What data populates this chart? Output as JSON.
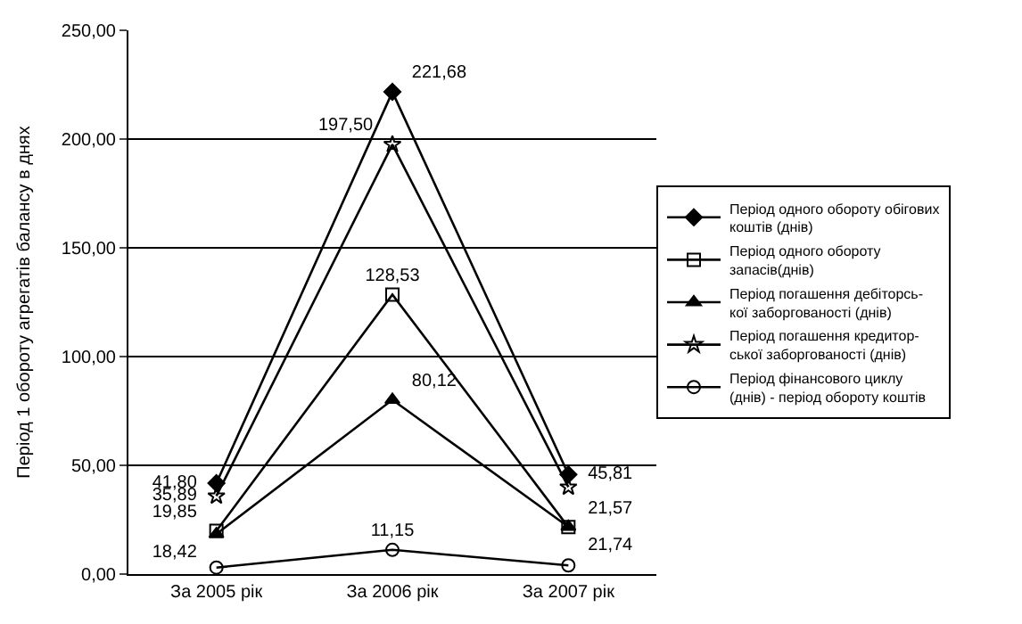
{
  "chart_data": {
    "type": "line",
    "ylabel": "Період 1 обороту агрегатів балансу в днях",
    "categories": [
      "За 2005 рік",
      "За 2006 рік",
      "За 2007 рік"
    ],
    "series": [
      {
        "name": "Період одного обороту обігових коштів (днів)",
        "color": "#000000",
        "marker": "diamond",
        "values": [
          41.8,
          221.68,
          45.81
        ],
        "value_labels": [
          "41,80",
          "221,68",
          "45,81"
        ]
      },
      {
        "name": "Період одного обороту запасів(днів)",
        "color": "#000000",
        "marker": "square",
        "values": [
          19.85,
          128.53,
          21.57
        ],
        "value_labels": [
          "19,85",
          "128,53",
          "21,57"
        ]
      },
      {
        "name": "Період погашення дебіторсь- кої заборгованості (днів)",
        "color": "#000000",
        "marker": "triangle",
        "values": [
          18.42,
          80.12,
          21.74
        ],
        "value_labels": [
          "18,42",
          "80,12",
          "21,74"
        ]
      },
      {
        "name": "Період погашення кредитор- ської заборгованості (днів)",
        "color": "#000000",
        "marker": "star",
        "values": [
          35.89,
          197.5,
          40
        ],
        "value_labels": [
          "35,89",
          "197,50",
          null
        ]
      },
      {
        "name": "Період фінансового циклу (днів) - період обороту коштів",
        "color": "#000000",
        "marker": "circle",
        "values": [
          3,
          11.15,
          4
        ],
        "value_labels": [
          null,
          "11,15",
          null
        ]
      }
    ],
    "ylim": [
      0,
      250
    ],
    "yticks": [
      {
        "value": 0,
        "label": "0,00"
      },
      {
        "value": 50,
        "label": "50,00"
      },
      {
        "value": 100,
        "label": "100,00"
      },
      {
        "value": 150,
        "label": "150,00"
      },
      {
        "value": 200,
        "label": "200,00"
      },
      {
        "value": 250,
        "label": "250,00"
      }
    ],
    "grid": "y",
    "legend": "right"
  }
}
